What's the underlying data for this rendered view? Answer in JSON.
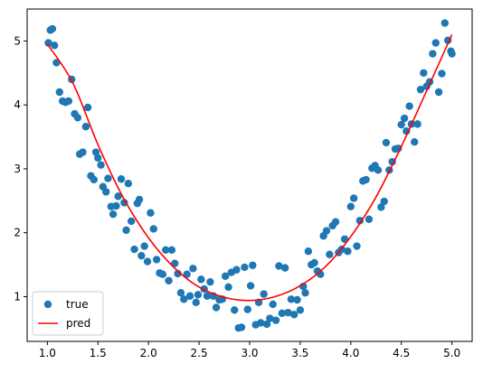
{
  "chart_data": {
    "type": "scatter",
    "title": "",
    "xlabel": "",
    "ylabel": "",
    "xlim": [
      0.8,
      5.2
    ],
    "ylim": [
      0.3,
      5.5
    ],
    "xticks": [
      1.0,
      1.5,
      2.0,
      2.5,
      3.0,
      3.5,
      4.0,
      4.5,
      5.0
    ],
    "xtick_labels": [
      "1.0",
      "1.5",
      "2.0",
      "2.5",
      "3.0",
      "3.5",
      "4.0",
      "4.5",
      "5.0"
    ],
    "yticks": [
      1,
      2,
      3,
      4,
      5
    ],
    "ytick_labels": [
      "1",
      "2",
      "3",
      "4",
      "5"
    ],
    "grid": false,
    "legend": {
      "position": "lower-left",
      "entries": [
        {
          "label": "true",
          "marker": "circle",
          "color": "#1f77b4"
        },
        {
          "label": "pred",
          "marker": "line",
          "color": "#ff0000"
        }
      ]
    },
    "series": [
      {
        "name": "true",
        "kind": "scatter",
        "color": "#1f77b4",
        "points": [
          [
            1.01,
            4.97
          ],
          [
            1.03,
            5.17
          ],
          [
            1.05,
            5.19
          ],
          [
            1.07,
            4.93
          ],
          [
            1.09,
            4.66
          ],
          [
            1.12,
            4.2
          ],
          [
            1.15,
            4.06
          ],
          [
            1.18,
            4.04
          ],
          [
            1.21,
            4.06
          ],
          [
            1.24,
            4.4
          ],
          [
            1.27,
            3.86
          ],
          [
            1.3,
            3.8
          ],
          [
            1.32,
            3.23
          ],
          [
            1.35,
            3.26
          ],
          [
            1.38,
            3.66
          ],
          [
            1.4,
            3.96
          ],
          [
            1.43,
            2.89
          ],
          [
            1.46,
            2.83
          ],
          [
            1.48,
            3.26
          ],
          [
            1.5,
            3.17
          ],
          [
            1.53,
            3.06
          ],
          [
            1.55,
            2.72
          ],
          [
            1.58,
            2.64
          ],
          [
            1.6,
            2.85
          ],
          [
            1.63,
            2.41
          ],
          [
            1.65,
            2.29
          ],
          [
            1.68,
            2.42
          ],
          [
            1.7,
            2.57
          ],
          [
            1.73,
            2.84
          ],
          [
            1.76,
            2.47
          ],
          [
            1.78,
            2.04
          ],
          [
            1.8,
            2.77
          ],
          [
            1.83,
            2.18
          ],
          [
            1.86,
            1.74
          ],
          [
            1.89,
            2.46
          ],
          [
            1.91,
            2.52
          ],
          [
            1.93,
            1.64
          ],
          [
            1.96,
            1.79
          ],
          [
            1.99,
            1.55
          ],
          [
            2.02,
            2.31
          ],
          [
            2.05,
            2.06
          ],
          [
            2.08,
            1.58
          ],
          [
            2.11,
            1.37
          ],
          [
            2.14,
            1.35
          ],
          [
            2.17,
            1.73
          ],
          [
            2.2,
            1.25
          ],
          [
            2.23,
            1.73
          ],
          [
            2.26,
            1.52
          ],
          [
            2.29,
            1.36
          ],
          [
            2.32,
            1.06
          ],
          [
            2.35,
            0.96
          ],
          [
            2.38,
            1.35
          ],
          [
            2.41,
            1.01
          ],
          [
            2.44,
            1.44
          ],
          [
            2.47,
            0.91
          ],
          [
            2.49,
            1.03
          ],
          [
            2.52,
            1.27
          ],
          [
            2.55,
            1.12
          ],
          [
            2.58,
            1.01
          ],
          [
            2.61,
            1.23
          ],
          [
            2.64,
            1.01
          ],
          [
            2.67,
            0.83
          ],
          [
            2.7,
            0.95
          ],
          [
            2.73,
            0.96
          ],
          [
            2.76,
            1.32
          ],
          [
            2.79,
            1.15
          ],
          [
            2.82,
            1.38
          ],
          [
            2.85,
            0.79
          ],
          [
            2.87,
            1.42
          ],
          [
            2.89,
            0.51
          ],
          [
            2.92,
            0.52
          ],
          [
            2.95,
            1.46
          ],
          [
            2.98,
            0.8
          ],
          [
            3.01,
            1.17
          ],
          [
            3.03,
            1.49
          ],
          [
            3.06,
            0.56
          ],
          [
            3.09,
            0.91
          ],
          [
            3.11,
            0.59
          ],
          [
            3.14,
            1.04
          ],
          [
            3.17,
            0.57
          ],
          [
            3.2,
            0.66
          ],
          [
            3.23,
            0.88
          ],
          [
            3.26,
            0.63
          ],
          [
            3.29,
            1.48
          ],
          [
            3.32,
            0.74
          ],
          [
            3.35,
            1.45
          ],
          [
            3.38,
            0.75
          ],
          [
            3.41,
            0.96
          ],
          [
            3.44,
            0.72
          ],
          [
            3.47,
            0.95
          ],
          [
            3.5,
            0.79
          ],
          [
            3.53,
            1.16
          ],
          [
            3.55,
            1.06
          ],
          [
            3.58,
            1.71
          ],
          [
            3.61,
            1.5
          ],
          [
            3.64,
            1.53
          ],
          [
            3.67,
            1.4
          ],
          [
            3.7,
            1.35
          ],
          [
            3.73,
            1.95
          ],
          [
            3.76,
            2.03
          ],
          [
            3.79,
            1.66
          ],
          [
            3.82,
            2.11
          ],
          [
            3.85,
            2.17
          ],
          [
            3.88,
            1.69
          ],
          [
            3.91,
            1.74
          ],
          [
            3.94,
            1.9
          ],
          [
            3.97,
            1.71
          ],
          [
            4.0,
            2.41
          ],
          [
            4.03,
            2.54
          ],
          [
            4.06,
            1.79
          ],
          [
            4.09,
            2.19
          ],
          [
            4.12,
            2.81
          ],
          [
            4.15,
            2.83
          ],
          [
            4.18,
            2.21
          ],
          [
            4.21,
            3.01
          ],
          [
            4.24,
            3.05
          ],
          [
            4.27,
            2.98
          ],
          [
            4.3,
            2.4
          ],
          [
            4.33,
            2.49
          ],
          [
            4.35,
            3.41
          ],
          [
            4.38,
            2.98
          ],
          [
            4.41,
            3.11
          ],
          [
            4.44,
            3.31
          ],
          [
            4.47,
            3.32
          ],
          [
            4.5,
            3.69
          ],
          [
            4.53,
            3.79
          ],
          [
            4.55,
            3.59
          ],
          [
            4.58,
            3.98
          ],
          [
            4.6,
            3.7
          ],
          [
            4.63,
            3.42
          ],
          [
            4.66,
            3.7
          ],
          [
            4.69,
            4.24
          ],
          [
            4.72,
            4.5
          ],
          [
            4.75,
            4.29
          ],
          [
            4.78,
            4.36
          ],
          [
            4.81,
            4.8
          ],
          [
            4.84,
            4.97
          ],
          [
            4.87,
            4.2
          ],
          [
            4.9,
            4.49
          ],
          [
            4.93,
            5.28
          ],
          [
            4.96,
            5.01
          ],
          [
            4.99,
            4.84
          ],
          [
            5.0,
            4.8
          ]
        ]
      },
      {
        "name": "pred",
        "kind": "line",
        "color": "#ff0000",
        "points": [
          [
            1.0,
            4.95
          ],
          [
            1.25,
            4.35
          ],
          [
            1.5,
            3.38
          ],
          [
            1.75,
            2.55
          ],
          [
            2.0,
            1.92
          ],
          [
            2.25,
            1.46
          ],
          [
            2.5,
            1.15
          ],
          [
            2.75,
            0.99
          ],
          [
            3.0,
            0.94
          ],
          [
            3.25,
            1.0
          ],
          [
            3.5,
            1.17
          ],
          [
            3.75,
            1.47
          ],
          [
            4.0,
            1.94
          ],
          [
            4.25,
            2.56
          ],
          [
            4.5,
            3.35
          ],
          [
            4.75,
            4.22
          ],
          [
            5.0,
            5.1
          ]
        ]
      }
    ]
  }
}
